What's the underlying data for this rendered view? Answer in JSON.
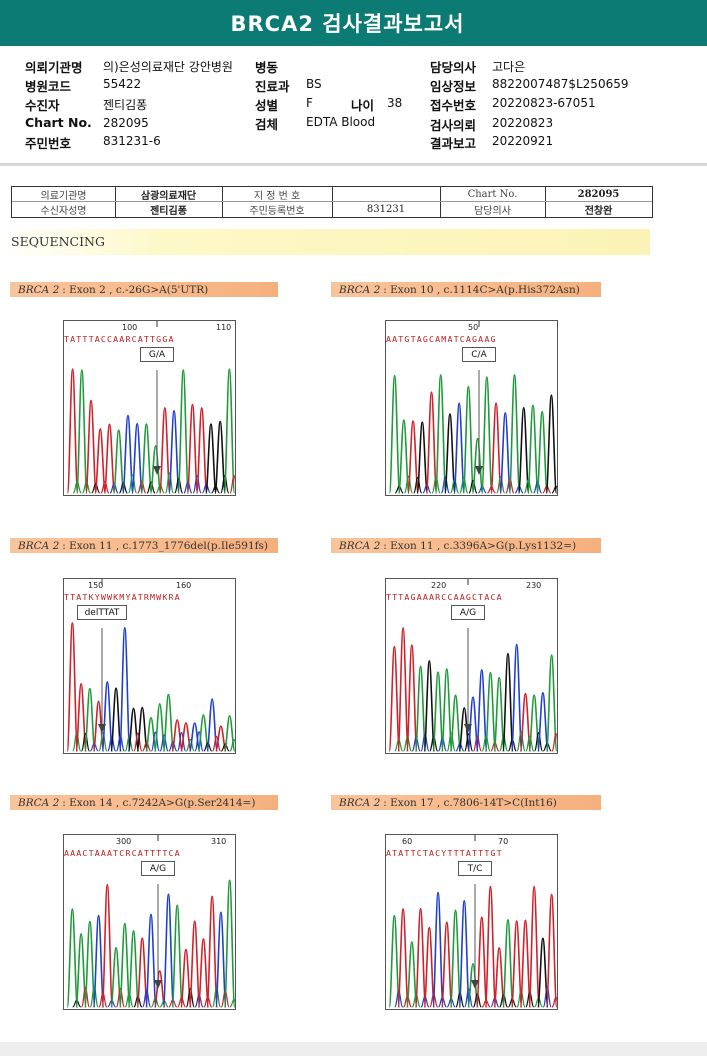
{
  "header": {
    "title": "BRCA2 검사결과보고서"
  },
  "info": {
    "hospital_label": "의뢰기관명",
    "hospital_value": "의)은성의료재단 강안병원",
    "code_label": "병원코드",
    "code_value": "55422",
    "receiver_label": "수진자",
    "receiver_value": "젠티김퐁",
    "chart_label": "Chart No.",
    "chart_value": "282095",
    "resid_label": "주민번호",
    "resid_value": "831231-6",
    "ward_label": "병동",
    "ward_value": "",
    "dept_label": "진료과",
    "dept_value": "BS",
    "sex_label": "성별",
    "sex_value": "F",
    "age_label": "나이",
    "age_value": "38",
    "specimen_label": "검체",
    "specimen_value": "EDTA Blood",
    "doctor_label": "담당의사",
    "doctor_value": "고다은",
    "clinical_label": "임상정보",
    "clinical_value": "8822007487$L250659",
    "accession_label": "접수번호",
    "accession_value": "20220823-67051",
    "request_label": "검사의뢰",
    "request_value": "20220823",
    "report_label": "결과보고",
    "report_value": "20220921"
  },
  "inner": {
    "inst_label": "의료기관명",
    "inst_value": "삼광의료재단",
    "designation_label": "지 정 번 호",
    "designation_value": "",
    "chart_label": "Chart No.",
    "chart_value": "282095",
    "patient_label": "수신자성명",
    "patient_value": "젠티김퐁",
    "resid_label": "주민등록번호",
    "resid_value": "831231",
    "doctor_label": "담당의사",
    "doctor_value": "전창완"
  },
  "section": {
    "title": "SEQUENCING"
  },
  "variants": [
    {
      "gene": "BRCA 2",
      "text": ": Exon 2 , c.-26G>A(5'UTR)",
      "pos1": "100",
      "pos2": "110",
      "bases": "TATTTACCAARCATTGGA",
      "call": "G/A"
    },
    {
      "gene": "BRCA 2",
      "text": ": Exon 10 , c.1114C>A(p.His372Asn)",
      "pos1": "50",
      "pos2": "",
      "bases": "AATGTAGCAMATCAGAAG",
      "call": "C/A"
    },
    {
      "gene": "BRCA 2",
      "text": ": Exon 11 , c.1773_1776del(p.Ile591fs)",
      "pos1": "150",
      "pos2": "160",
      "bases": "TTATKYWWKMYATRMWKRA",
      "call": "delTTAT"
    },
    {
      "gene": "BRCA 2",
      "text": ": Exon 11 , c.3396A>G(p.Lys1132=)",
      "pos1": "220",
      "pos2": "230",
      "bases": "TTTAGAAARCCAAGCTACA",
      "call": "A/G"
    },
    {
      "gene": "BRCA 2",
      "text": ": Exon 14 , c.7242A>G(p.Ser2414=)",
      "pos1": "300",
      "pos2": "310",
      "bases": "AAACTAAATCRCATTTTCA",
      "call": "A/G"
    },
    {
      "gene": "BRCA 2",
      "text": ": Exon 17 , c.7806-14T>C(Int16)",
      "pos1": "60",
      "pos2": "70",
      "bases": "ATATTCTACYTTTATTTGT",
      "call": "T/C"
    }
  ],
  "trace_colors": {
    "A": "#1f9a3a",
    "C": "#1f3fd0",
    "G": "#111111",
    "T": "#d0202a"
  }
}
